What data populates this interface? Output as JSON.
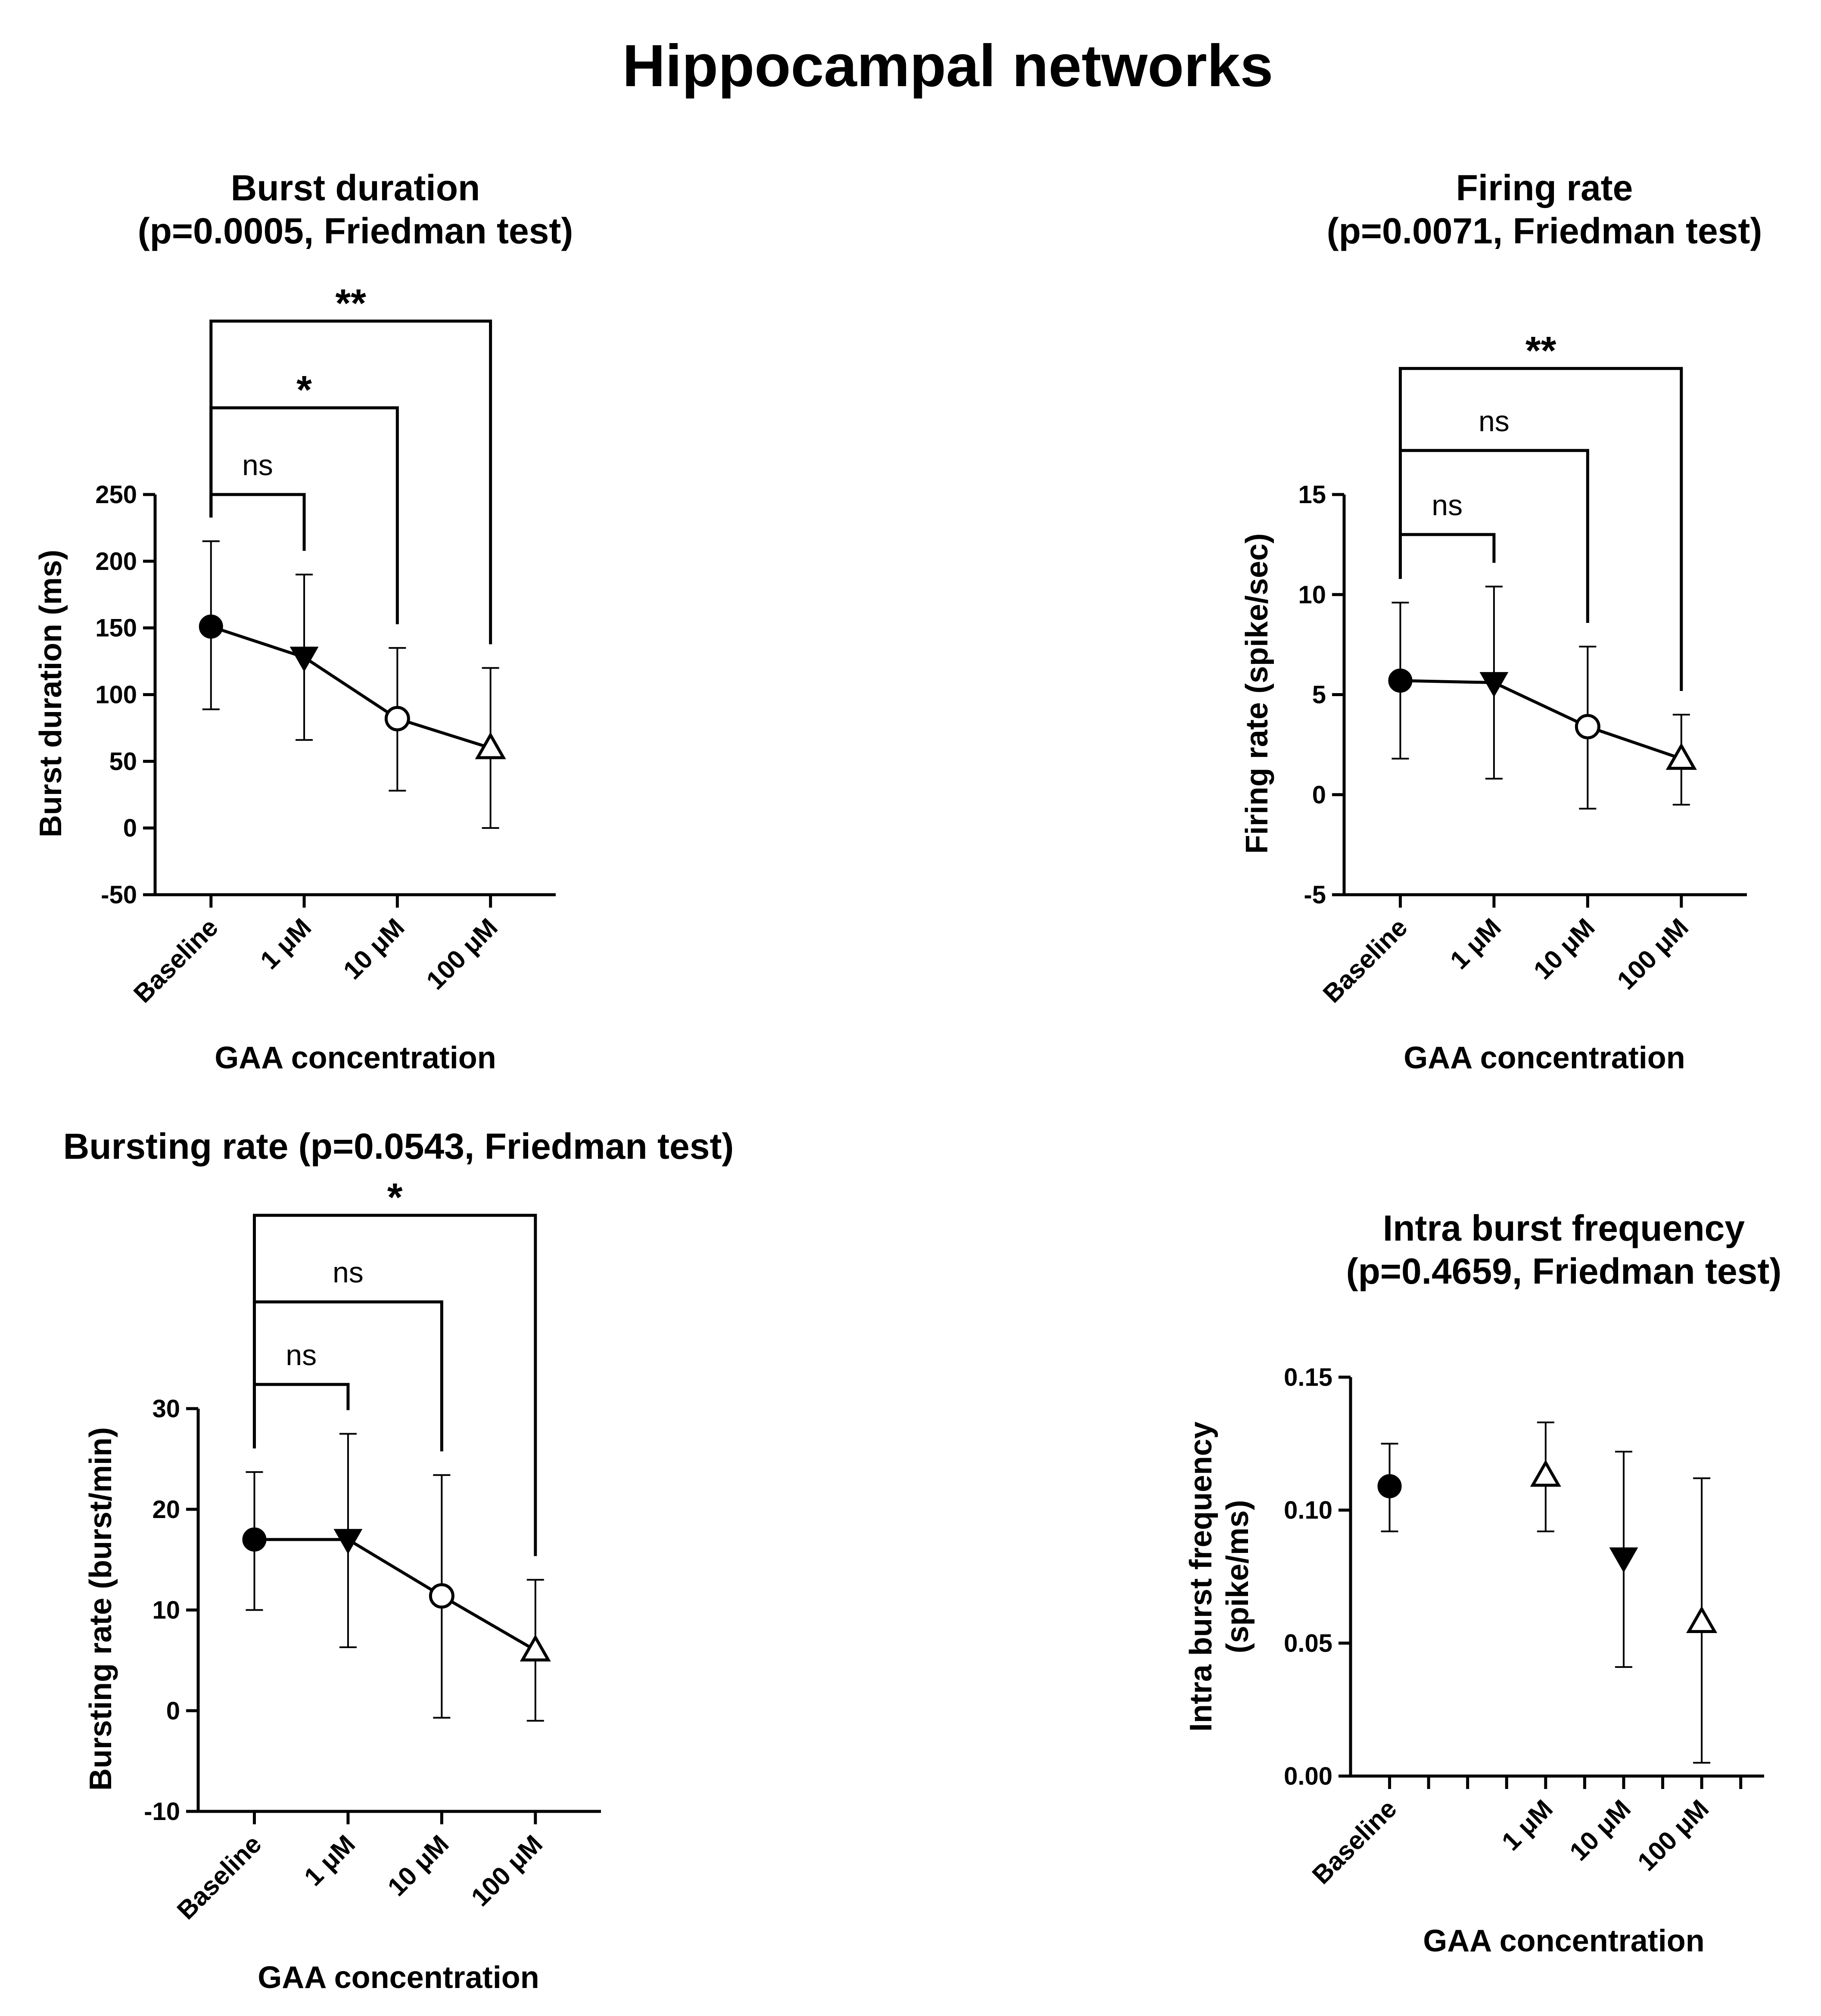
{
  "page_title": "Hippocampal networks",
  "chart_data": [
    {
      "id": "burst-duration",
      "type": "line",
      "title_lines": [
        "Burst duration",
        "(p=0.0005,  Friedman test)"
      ],
      "xlabel": "GAA concentration",
      "ylabel_lines": [
        "Burst duration (ms)"
      ],
      "categories": [
        "Baseline",
        "1 μM",
        "10 μM",
        "100 μM"
      ],
      "category_positions": [
        1,
        2,
        3,
        4
      ],
      "xlim": [
        0.4,
        4.7
      ],
      "ylim": [
        -50,
        250
      ],
      "yticks": [
        -50,
        0,
        50,
        100,
        150,
        200,
        250
      ],
      "ytick_labels": [
        "-50",
        "0",
        "50",
        "100",
        "150",
        "200",
        "250"
      ],
      "x_minor_ticks": [],
      "connected": true,
      "series": [
        {
          "name": "Burst duration",
          "values": [
            151,
            128,
            82,
            60
          ],
          "err_low": [
            89,
            66,
            28,
            0
          ],
          "err_high": [
            215,
            190,
            135,
            120
          ],
          "markers": [
            "filled-circle",
            "filled-triangle-down",
            "open-circle",
            "open-triangle-up"
          ]
        }
      ],
      "comparisons": [
        {
          "from": 1,
          "to": 2,
          "label": "ns",
          "level": 250
        },
        {
          "from": 1,
          "to": 3,
          "label": "*",
          "level": 315
        },
        {
          "from": 1,
          "to": 4,
          "label": "**",
          "level": 380
        }
      ]
    },
    {
      "id": "firing-rate",
      "type": "line",
      "title_lines": [
        "Firing rate",
        "(p=0.0071, Friedman test)"
      ],
      "xlabel": "GAA concentration",
      "ylabel_lines": [
        "Firing rate (spike/sec)"
      ],
      "categories": [
        "Baseline",
        "1 μM",
        "10 μM",
        "100 μM"
      ],
      "category_positions": [
        1,
        2,
        3,
        4
      ],
      "xlim": [
        0.4,
        4.7
      ],
      "ylim": [
        -5,
        15
      ],
      "yticks": [
        -5,
        0,
        5,
        10,
        15
      ],
      "ytick_labels": [
        "-5",
        "0",
        "5",
        "10",
        "15"
      ],
      "x_minor_ticks": [],
      "connected": true,
      "series": [
        {
          "name": "Firing rate",
          "values": [
            5.7,
            5.6,
            3.4,
            1.8
          ],
          "err_low": [
            1.8,
            0.8,
            -0.7,
            -0.5
          ],
          "err_high": [
            9.6,
            10.4,
            7.4,
            4.0
          ],
          "markers": [
            "filled-circle",
            "filled-triangle-down",
            "open-circle",
            "open-triangle-up"
          ]
        }
      ],
      "comparisons": [
        {
          "from": 1,
          "to": 2,
          "label": "ns",
          "level": 13.0
        },
        {
          "from": 1,
          "to": 3,
          "label": "ns",
          "level": 17.2
        },
        {
          "from": 1,
          "to": 4,
          "label": "**",
          "level": 21.3
        }
      ]
    },
    {
      "id": "bursting-rate",
      "type": "line",
      "title_lines": [
        "Bursting rate (p=0.0543, Friedman test)"
      ],
      "xlabel": "GAA concentration",
      "ylabel_lines": [
        "Bursting rate (burst/min)"
      ],
      "categories": [
        "Baseline",
        "1 μM",
        "10 μM",
        "100 μM"
      ],
      "category_positions": [
        1,
        2,
        3,
        4
      ],
      "xlim": [
        0.4,
        4.7
      ],
      "ylim": [
        -10,
        30
      ],
      "yticks": [
        -10,
        0,
        10,
        20,
        30
      ],
      "ytick_labels": [
        "-10",
        "0",
        "10",
        "20",
        "30"
      ],
      "x_minor_ticks": [],
      "connected": true,
      "series": [
        {
          "name": "Bursting rate",
          "values": [
            17.0,
            17.0,
            11.4,
            6.0
          ],
          "err_low": [
            10.0,
            6.3,
            -0.7,
            -1.0
          ],
          "err_high": [
            23.7,
            27.5,
            23.4,
            13.0
          ],
          "markers": [
            "filled-circle",
            "filled-triangle-down",
            "open-circle",
            "open-triangle-up"
          ]
        }
      ],
      "comparisons": [
        {
          "from": 1,
          "to": 2,
          "label": "ns",
          "level": 32.4
        },
        {
          "from": 1,
          "to": 3,
          "label": "ns",
          "level": 40.6
        },
        {
          "from": 1,
          "to": 4,
          "label": "*",
          "level": 49.2
        }
      ]
    },
    {
      "id": "intra-burst-frequency",
      "type": "scatter",
      "title_lines": [
        "Intra burst frequency",
        "(p=0.4659, Friedman test)"
      ],
      "xlabel": "GAA concentration",
      "ylabel_lines": [
        "Intra burst frequency",
        "(spike/ms)"
      ],
      "categories": [
        "Baseline",
        "1 μM",
        "10 μM",
        "100 μM"
      ],
      "category_positions": [
        1,
        3,
        4,
        5
      ],
      "xlim": [
        0.5,
        5.8
      ],
      "ylim": [
        0,
        0.15
      ],
      "yticks": [
        0,
        0.05,
        0.1,
        0.15
      ],
      "ytick_labels": [
        "0.00",
        "0.05",
        "0.10",
        "0.15"
      ],
      "x_minor_ticks": [
        1.5,
        2,
        2.5,
        3.5,
        4.5,
        5.5
      ],
      "connected": false,
      "series": [
        {
          "name": "Intra burst frequency",
          "values": [
            0.109,
            0.113,
            0.082,
            0.058
          ],
          "err_low": [
            0.092,
            0.092,
            0.041,
            0.005
          ],
          "err_high": [
            0.125,
            0.133,
            0.122,
            0.112
          ],
          "markers": [
            "filled-circle",
            "open-triangle-up",
            "filled-triangle-down",
            "open-triangle-up"
          ]
        }
      ],
      "comparisons": []
    }
  ]
}
